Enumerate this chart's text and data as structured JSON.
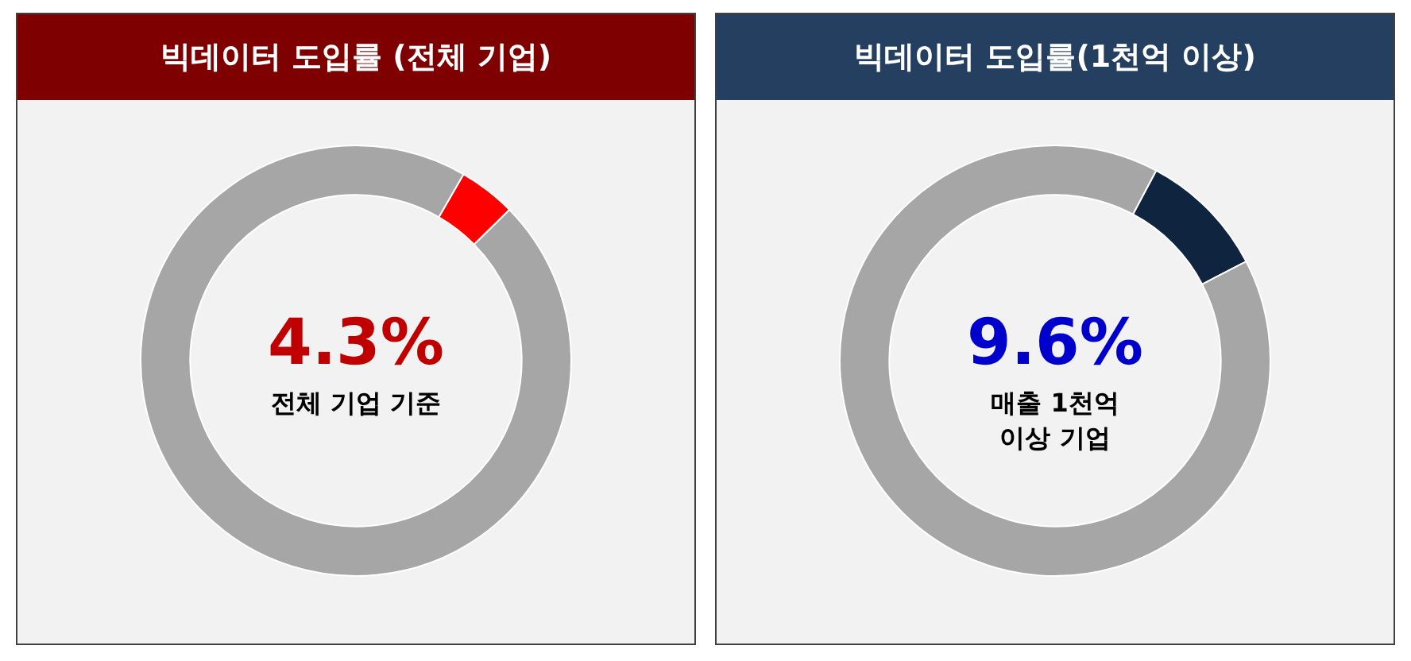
{
  "chart_data": [
    {
      "type": "donut",
      "title": "빅데이터 도입률 (전체 기업)",
      "categories": [
        null,
        null
      ],
      "values": [
        4.3,
        95.7
      ],
      "colors": [
        "#ff0000",
        "#a6a6a6"
      ],
      "annotations": [
        "4.3%",
        "전체 기업 기준"
      ],
      "legend": false
    },
    {
      "type": "donut",
      "title": "빅데이터 도입률(1천억 이상)",
      "categories": [
        null,
        null
      ],
      "values": [
        9.6,
        90.4
      ],
      "colors": [
        "#0f243e",
        "#a6a6a6"
      ],
      "annotations": [
        "9.6%",
        "매출 1천억 이상 기업"
      ],
      "legend": false
    }
  ]
}
